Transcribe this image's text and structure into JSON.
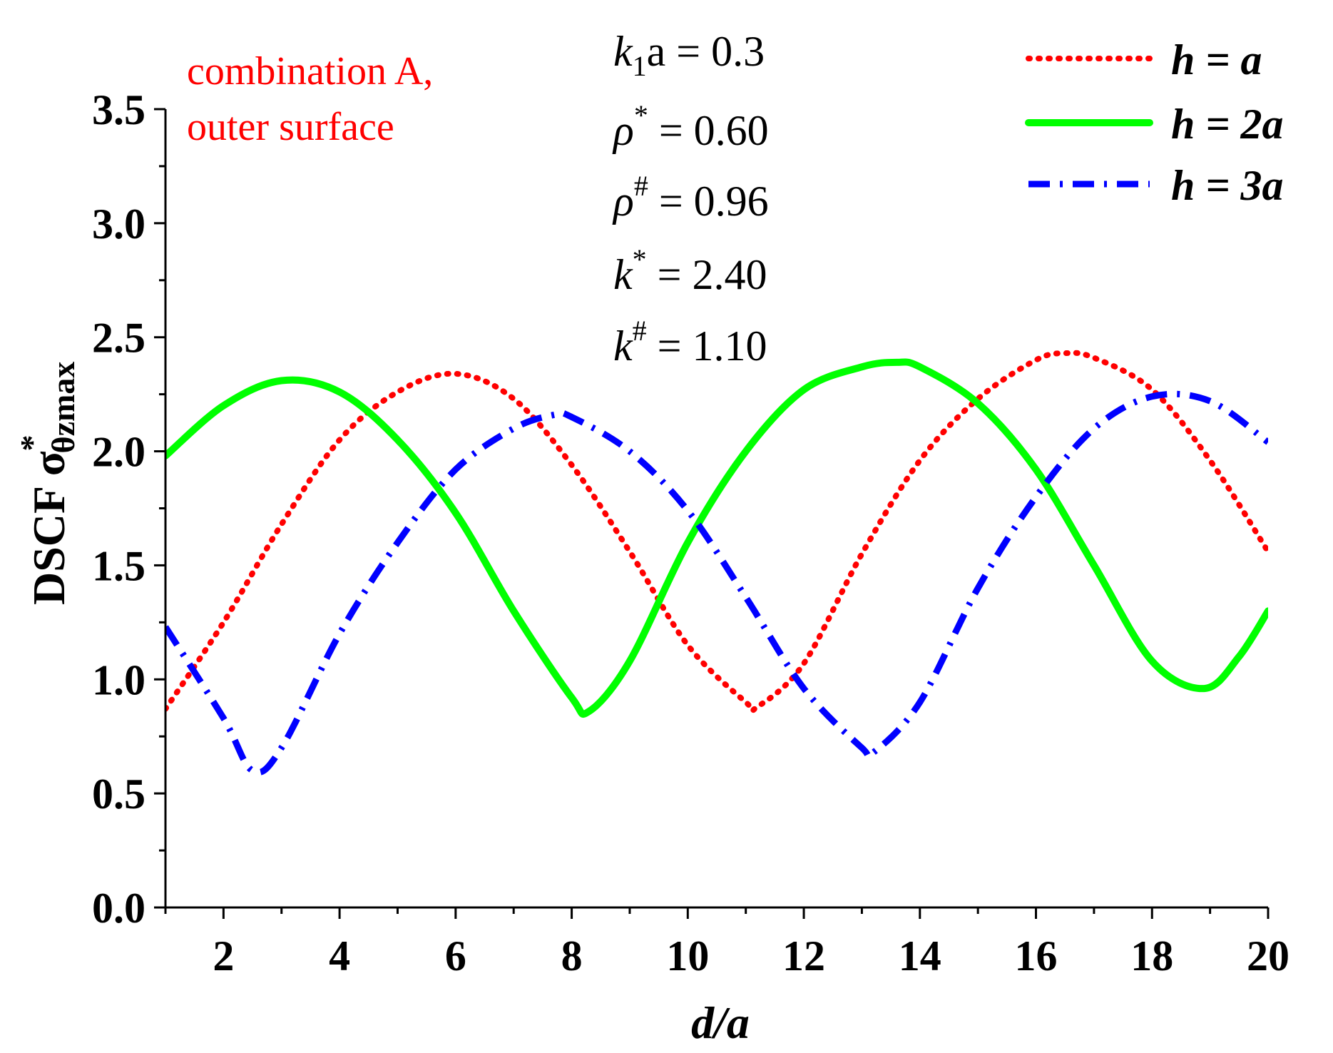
{
  "chart_data": {
    "type": "line",
    "title": "",
    "xlabel": "d/a",
    "ylabel_prefix": "DSCF σ",
    "ylabel_sup": "*",
    "ylabel_sub": "θzmax",
    "xlim": [
      1,
      20
    ],
    "ylim": [
      0,
      3.5
    ],
    "x_major_ticks": [
      2,
      4,
      6,
      8,
      10,
      12,
      14,
      16,
      18,
      20
    ],
    "x_tick_labels": [
      "2",
      "4",
      "6",
      "8",
      "10",
      "12",
      "14",
      "16",
      "18",
      "20"
    ],
    "y_major_ticks": [
      0,
      0.5,
      1,
      1.5,
      2,
      2.5,
      3,
      3.5
    ],
    "y_tick_labels": [
      "0.0",
      "0.5",
      "1.0",
      "1.5",
      "2.0",
      "2.5",
      "3.0",
      "3.5"
    ],
    "grid": false,
    "legend_position": "top-right",
    "annotation_red": [
      "combination A,",
      "outer surface"
    ],
    "params": [
      {
        "sym": "k",
        "sub": "1",
        "mid": "a",
        "sup": "",
        "rest": " = 0.3"
      },
      {
        "sym": "ρ",
        "sub": "",
        "mid": "",
        "sup": "*",
        "rest": " = 0.60"
      },
      {
        "sym": "ρ",
        "sub": "",
        "mid": "",
        "sup": "#",
        "rest": " = 0.96"
      },
      {
        "sym": "k",
        "sub": "",
        "mid": "",
        "sup": "*",
        "rest": " = 2.40"
      },
      {
        "sym": "k",
        "sub": "",
        "mid": "",
        "sup": "#",
        "rest": " = 1.10"
      }
    ],
    "series": [
      {
        "name": "h = a",
        "color": "#ff0000",
        "style": "dotted",
        "x": [
          1,
          2,
          3,
          4,
          5,
          6,
          7,
          8,
          9,
          10,
          11,
          11.2,
          12,
          13,
          14,
          15,
          16,
          16.5,
          17,
          18,
          19,
          20
        ],
        "y": [
          0.87,
          1.25,
          1.68,
          2.05,
          2.26,
          2.34,
          2.23,
          1.94,
          1.56,
          1.15,
          0.9,
          0.88,
          1.07,
          1.55,
          1.96,
          2.23,
          2.4,
          2.43,
          2.41,
          2.27,
          1.96,
          1.56
        ]
      },
      {
        "name": "h = 2a",
        "color": "#00ff00",
        "style": "solid",
        "x": [
          1,
          2,
          3,
          4,
          5,
          6,
          7,
          8,
          8.3,
          9,
          10,
          11,
          12,
          13,
          13.6,
          14,
          15,
          16,
          17,
          18,
          18.9,
          19.5,
          20
        ],
        "y": [
          1.98,
          2.2,
          2.31,
          2.26,
          2.05,
          1.73,
          1.3,
          0.92,
          0.86,
          1.08,
          1.6,
          2.0,
          2.27,
          2.37,
          2.39,
          2.37,
          2.21,
          1.92,
          1.5,
          1.08,
          0.96,
          1.1,
          1.3
        ]
      },
      {
        "name": "h = 3a",
        "color": "#0000ff",
        "style": "dashdot",
        "x": [
          1,
          2,
          2.5,
          3,
          4,
          5,
          6,
          7,
          7.7,
          8,
          9,
          10,
          11,
          12,
          13,
          13.2,
          14,
          15,
          16,
          17,
          18,
          19,
          20
        ],
        "y": [
          1.23,
          0.83,
          0.6,
          0.7,
          1.2,
          1.6,
          1.92,
          2.1,
          2.16,
          2.15,
          2.0,
          1.74,
          1.36,
          0.96,
          0.7,
          0.68,
          0.9,
          1.4,
          1.8,
          2.1,
          2.24,
          2.22,
          2.04
        ]
      }
    ]
  }
}
